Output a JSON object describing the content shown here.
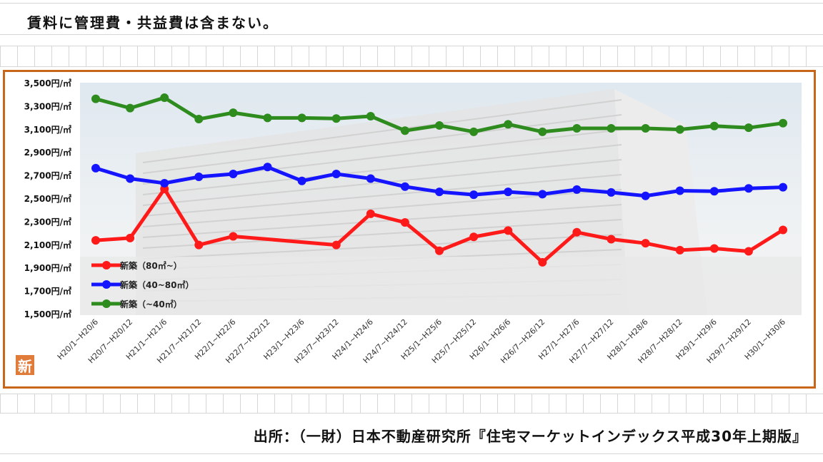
{
  "note": "賃料に管理費・共益費は含まない。",
  "source": "出所：（一財）日本不動産研究所『住宅マーケットインデックス平成30年上期版』",
  "badge": "新",
  "colors": {
    "frame": "#c8661a",
    "series_small": "#2e8b1e",
    "series_mid": "#1414ff",
    "series_large": "#ff1a1a"
  },
  "chart_data": {
    "type": "line",
    "ylim": [
      1500,
      3500
    ],
    "yticks": [
      {
        "value": 3500,
        "label": "3,500円/㎡"
      },
      {
        "value": 3300,
        "label": "3,300円/㎡"
      },
      {
        "value": 3100,
        "label": "3,100円/㎡"
      },
      {
        "value": 2900,
        "label": "2,900円/㎡"
      },
      {
        "value": 2700,
        "label": "2,700円/㎡"
      },
      {
        "value": 2500,
        "label": "2,500円/㎡"
      },
      {
        "value": 2300,
        "label": "2,300円/㎡"
      },
      {
        "value": 2100,
        "label": "2,100円/㎡"
      },
      {
        "value": 1900,
        "label": "1,900円/㎡"
      },
      {
        "value": 1700,
        "label": "1,700円/㎡"
      },
      {
        "value": 1500,
        "label": "1,500円/㎡"
      }
    ],
    "categories": [
      "H20/1~H20/6",
      "H20/7~H20/12",
      "H21/1~H21/6",
      "H21/7~H21/12",
      "H22/1~H22/6",
      "H22/7~H22/12",
      "H23/1~H23/6",
      "H23/7~H23/12",
      "H24/1~H24/6",
      "H24/7~H24/12",
      "H25/1~H25/6",
      "H25/7~H25/12",
      "H26/1~H26/6",
      "H26/7~H26/12",
      "H27/1~H27/6",
      "H27/7~H27/12",
      "H28/1~H28/6",
      "H28/7~H28/12",
      "H29/1~H29/6",
      "H29/7~H29/12",
      "H30/1~H30/6"
    ],
    "series": [
      {
        "name": "新築（80㎡~）",
        "color": "#ff1a1a",
        "values": [
          2135,
          2155,
          2580,
          2095,
          2170,
          null,
          null,
          2095,
          2365,
          2290,
          2045,
          2165,
          2220,
          1945,
          2205,
          2145,
          2110,
          2050,
          2065,
          2040,
          2225
        ]
      },
      {
        "name": "新築（40~80㎡）",
        "color": "#1414ff",
        "values": [
          2760,
          2670,
          2630,
          2685,
          2710,
          2770,
          2650,
          2710,
          2670,
          2600,
          2555,
          2530,
          2555,
          2535,
          2575,
          2550,
          2520,
          2565,
          2560,
          2585,
          2595
        ]
      },
      {
        "name": "新築（~40㎡）",
        "color": "#2e8b1e",
        "values": [
          3360,
          3280,
          3370,
          3185,
          3240,
          3195,
          3195,
          3190,
          3210,
          3085,
          3130,
          3075,
          3140,
          3075,
          3105,
          3105,
          3105,
          3095,
          3125,
          3110,
          3150
        ]
      }
    ],
    "grid": false,
    "legend": "bottom-left"
  }
}
